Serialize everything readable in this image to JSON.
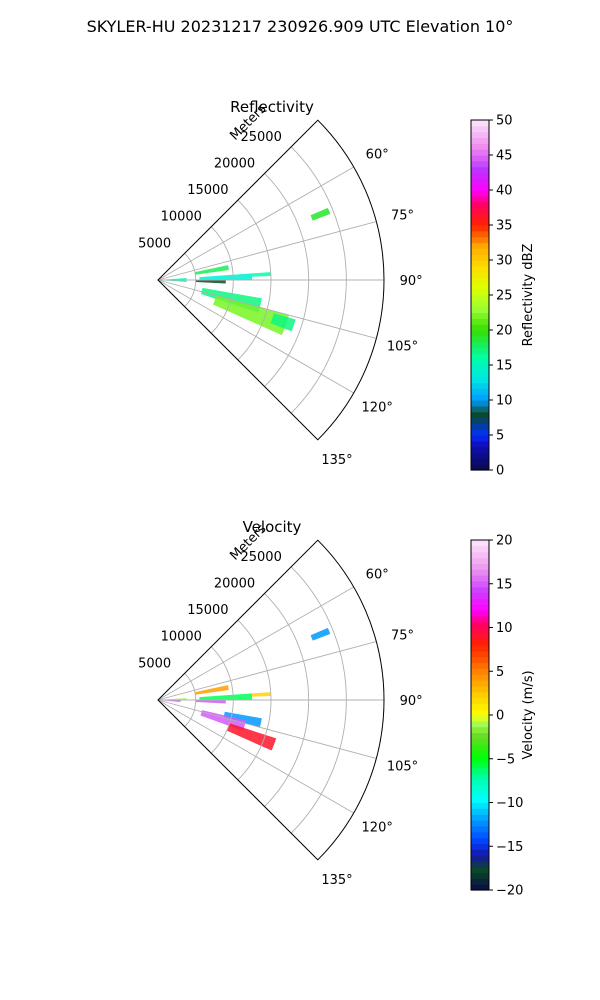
{
  "figure": {
    "title": "SKYLER-HU  20231217  230926.909 UTC Elevation 10°"
  },
  "chart_data": [
    {
      "type": "ppi-sector",
      "title": "Reflectivity",
      "radial_label": "Meters",
      "r_ticks": [
        5000,
        10000,
        15000,
        20000,
        25000
      ],
      "r_tick_labels": [
        "5000",
        "10000",
        "15000",
        "20000",
        "25000"
      ],
      "r_max": 30000,
      "azimuth_ticks_deg": [
        60,
        75,
        90,
        105,
        120,
        135
      ],
      "azimuth_tick_labels": [
        "60°",
        "75°",
        "90°",
        "105°",
        "120°",
        "135°"
      ],
      "azimuth_range_deg": [
        45,
        135
      ],
      "grid": true,
      "colorbar": {
        "label": "Reflectivity dBZ",
        "min": 0,
        "max": 50,
        "ticks": [
          0,
          5,
          10,
          15,
          20,
          25,
          30,
          35,
          40,
          45,
          50
        ],
        "tick_labels": [
          "0",
          "5",
          "10",
          "15",
          "20",
          "25",
          "30",
          "35",
          "40",
          "45",
          "50"
        ]
      },
      "echo_regions": [
        {
          "az": [
            67,
            69
          ],
          "r": [
            22000,
            24500
          ],
          "value": 19
        },
        {
          "az": [
            78,
            82
          ],
          "r": [
            5000,
            9500
          ],
          "value": 18
        },
        {
          "az": [
            86,
            90
          ],
          "r": [
            5500,
            12500
          ],
          "value": 14
        },
        {
          "az": [
            86,
            88
          ],
          "r": [
            12500,
            15000
          ],
          "value": 16
        },
        {
          "az": [
            90,
            93
          ],
          "r": [
            5000,
            9000
          ],
          "value": 8
        },
        {
          "az": [
            86,
            94
          ],
          "r": [
            300,
            3800
          ],
          "value": 15
        },
        {
          "az": [
            100,
            108
          ],
          "r": [
            6000,
            14000
          ],
          "value": 17
        },
        {
          "az": [
            105,
            114
          ],
          "r": [
            8000,
            18000
          ],
          "value": 22
        },
        {
          "az": [
            106,
            111
          ],
          "r": [
            16000,
            19000
          ],
          "value": 17
        }
      ]
    },
    {
      "type": "ppi-sector",
      "title": "Velocity",
      "radial_label": "Meters",
      "r_ticks": [
        5000,
        10000,
        15000,
        20000,
        25000
      ],
      "r_tick_labels": [
        "5000",
        "10000",
        "15000",
        "20000",
        "25000"
      ],
      "r_max": 30000,
      "azimuth_ticks_deg": [
        60,
        75,
        90,
        105,
        120,
        135
      ],
      "azimuth_tick_labels": [
        "60°",
        "75°",
        "90°",
        "105°",
        "120°",
        "135°"
      ],
      "azimuth_range_deg": [
        45,
        135
      ],
      "grid": true,
      "colorbar": {
        "label": "Velocity (m/s)",
        "min": -20,
        "max": 20,
        "ticks": [
          -20,
          -15,
          -10,
          -5,
          0,
          5,
          10,
          15,
          20
        ],
        "tick_labels": [
          "−20",
          "−15",
          "−10",
          "−5",
          "0",
          "5",
          "10",
          "15",
          "20"
        ]
      },
      "echo_regions": [
        {
          "az": [
            67,
            69
          ],
          "r": [
            22000,
            24500
          ],
          "value": -12
        },
        {
          "az": [
            78,
            82
          ],
          "r": [
            5000,
            9500
          ],
          "value": 4
        },
        {
          "az": [
            86,
            90
          ],
          "r": [
            5500,
            12500
          ],
          "value": -6
        },
        {
          "az": [
            86,
            88
          ],
          "r": [
            12500,
            15000
          ],
          "value": 2
        },
        {
          "az": [
            90,
            93
          ],
          "r": [
            5000,
            9000
          ],
          "value": 15
        },
        {
          "az": [
            86,
            90
          ],
          "r": [
            300,
            3800
          ],
          "value": -1
        },
        {
          "az": [
            91,
            95
          ],
          "r": [
            300,
            3000
          ],
          "value": 15
        },
        {
          "az": [
            100,
            105
          ],
          "r": [
            9000,
            14000
          ],
          "value": -12
        },
        {
          "az": [
            103,
            110
          ],
          "r": [
            6000,
            12000
          ],
          "value": 15
        },
        {
          "az": [
            108,
            114
          ],
          "r": [
            10000,
            16500
          ],
          "value": 9
        }
      ]
    }
  ]
}
